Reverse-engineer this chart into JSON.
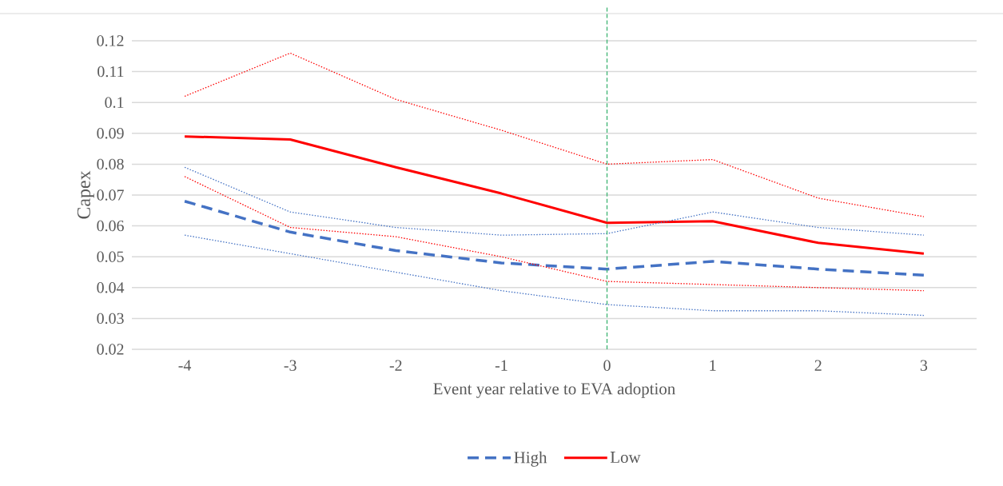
{
  "chart_data": {
    "type": "line",
    "xlabel": "Event year relative to EVA adoption",
    "ylabel": "Capex",
    "x": [
      -4,
      -3,
      -2,
      -1,
      0,
      1,
      2,
      3
    ],
    "xlim": [
      -4.5,
      3.5
    ],
    "xticks": [
      -4,
      -3,
      -2,
      -1,
      0,
      1,
      2,
      3
    ],
    "ylim": [
      0.02,
      0.12
    ],
    "yticks": [
      0.02,
      0.03,
      0.04,
      0.05,
      0.06,
      0.07,
      0.08,
      0.09,
      0.1,
      0.11,
      0.12
    ],
    "grid": "y",
    "legend": "bottom",
    "series": [
      {
        "name": "High",
        "color": "#4472c4",
        "line_style": "dashed",
        "values": [
          0.068,
          0.058,
          0.052,
          0.048,
          0.046,
          0.0485,
          0.046,
          0.044
        ]
      },
      {
        "name": "Low",
        "color": "#ff0000",
        "line_style": "solid",
        "values": [
          0.089,
          0.088,
          0.079,
          0.0705,
          0.061,
          0.0615,
          0.0545,
          0.051
        ]
      },
      {
        "color": "#4472c4",
        "line_style": "dotted",
        "values": [
          0.079,
          0.0645,
          0.0595,
          0.057,
          0.0575,
          0.0645,
          0.0595,
          0.057
        ]
      },
      {
        "color": "#4472c4",
        "line_style": "dotted",
        "values": [
          0.057,
          0.051,
          0.045,
          0.039,
          0.0345,
          0.0325,
          0.0325,
          0.031
        ]
      },
      {
        "color": "#ff0000",
        "line_style": "dotted",
        "values": [
          0.102,
          0.116,
          0.101,
          0.091,
          0.08,
          0.0815,
          0.069,
          0.063
        ]
      },
      {
        "color": "#ff0000",
        "line_style": "dotted",
        "values": [
          0.076,
          0.0595,
          0.0565,
          0.05,
          0.042,
          0.041,
          0.04,
          0.039
        ]
      }
    ],
    "ref_lines": [
      {
        "axis": "x",
        "value": 0,
        "color": "#3cb371",
        "line_style": "dashed"
      }
    ]
  }
}
